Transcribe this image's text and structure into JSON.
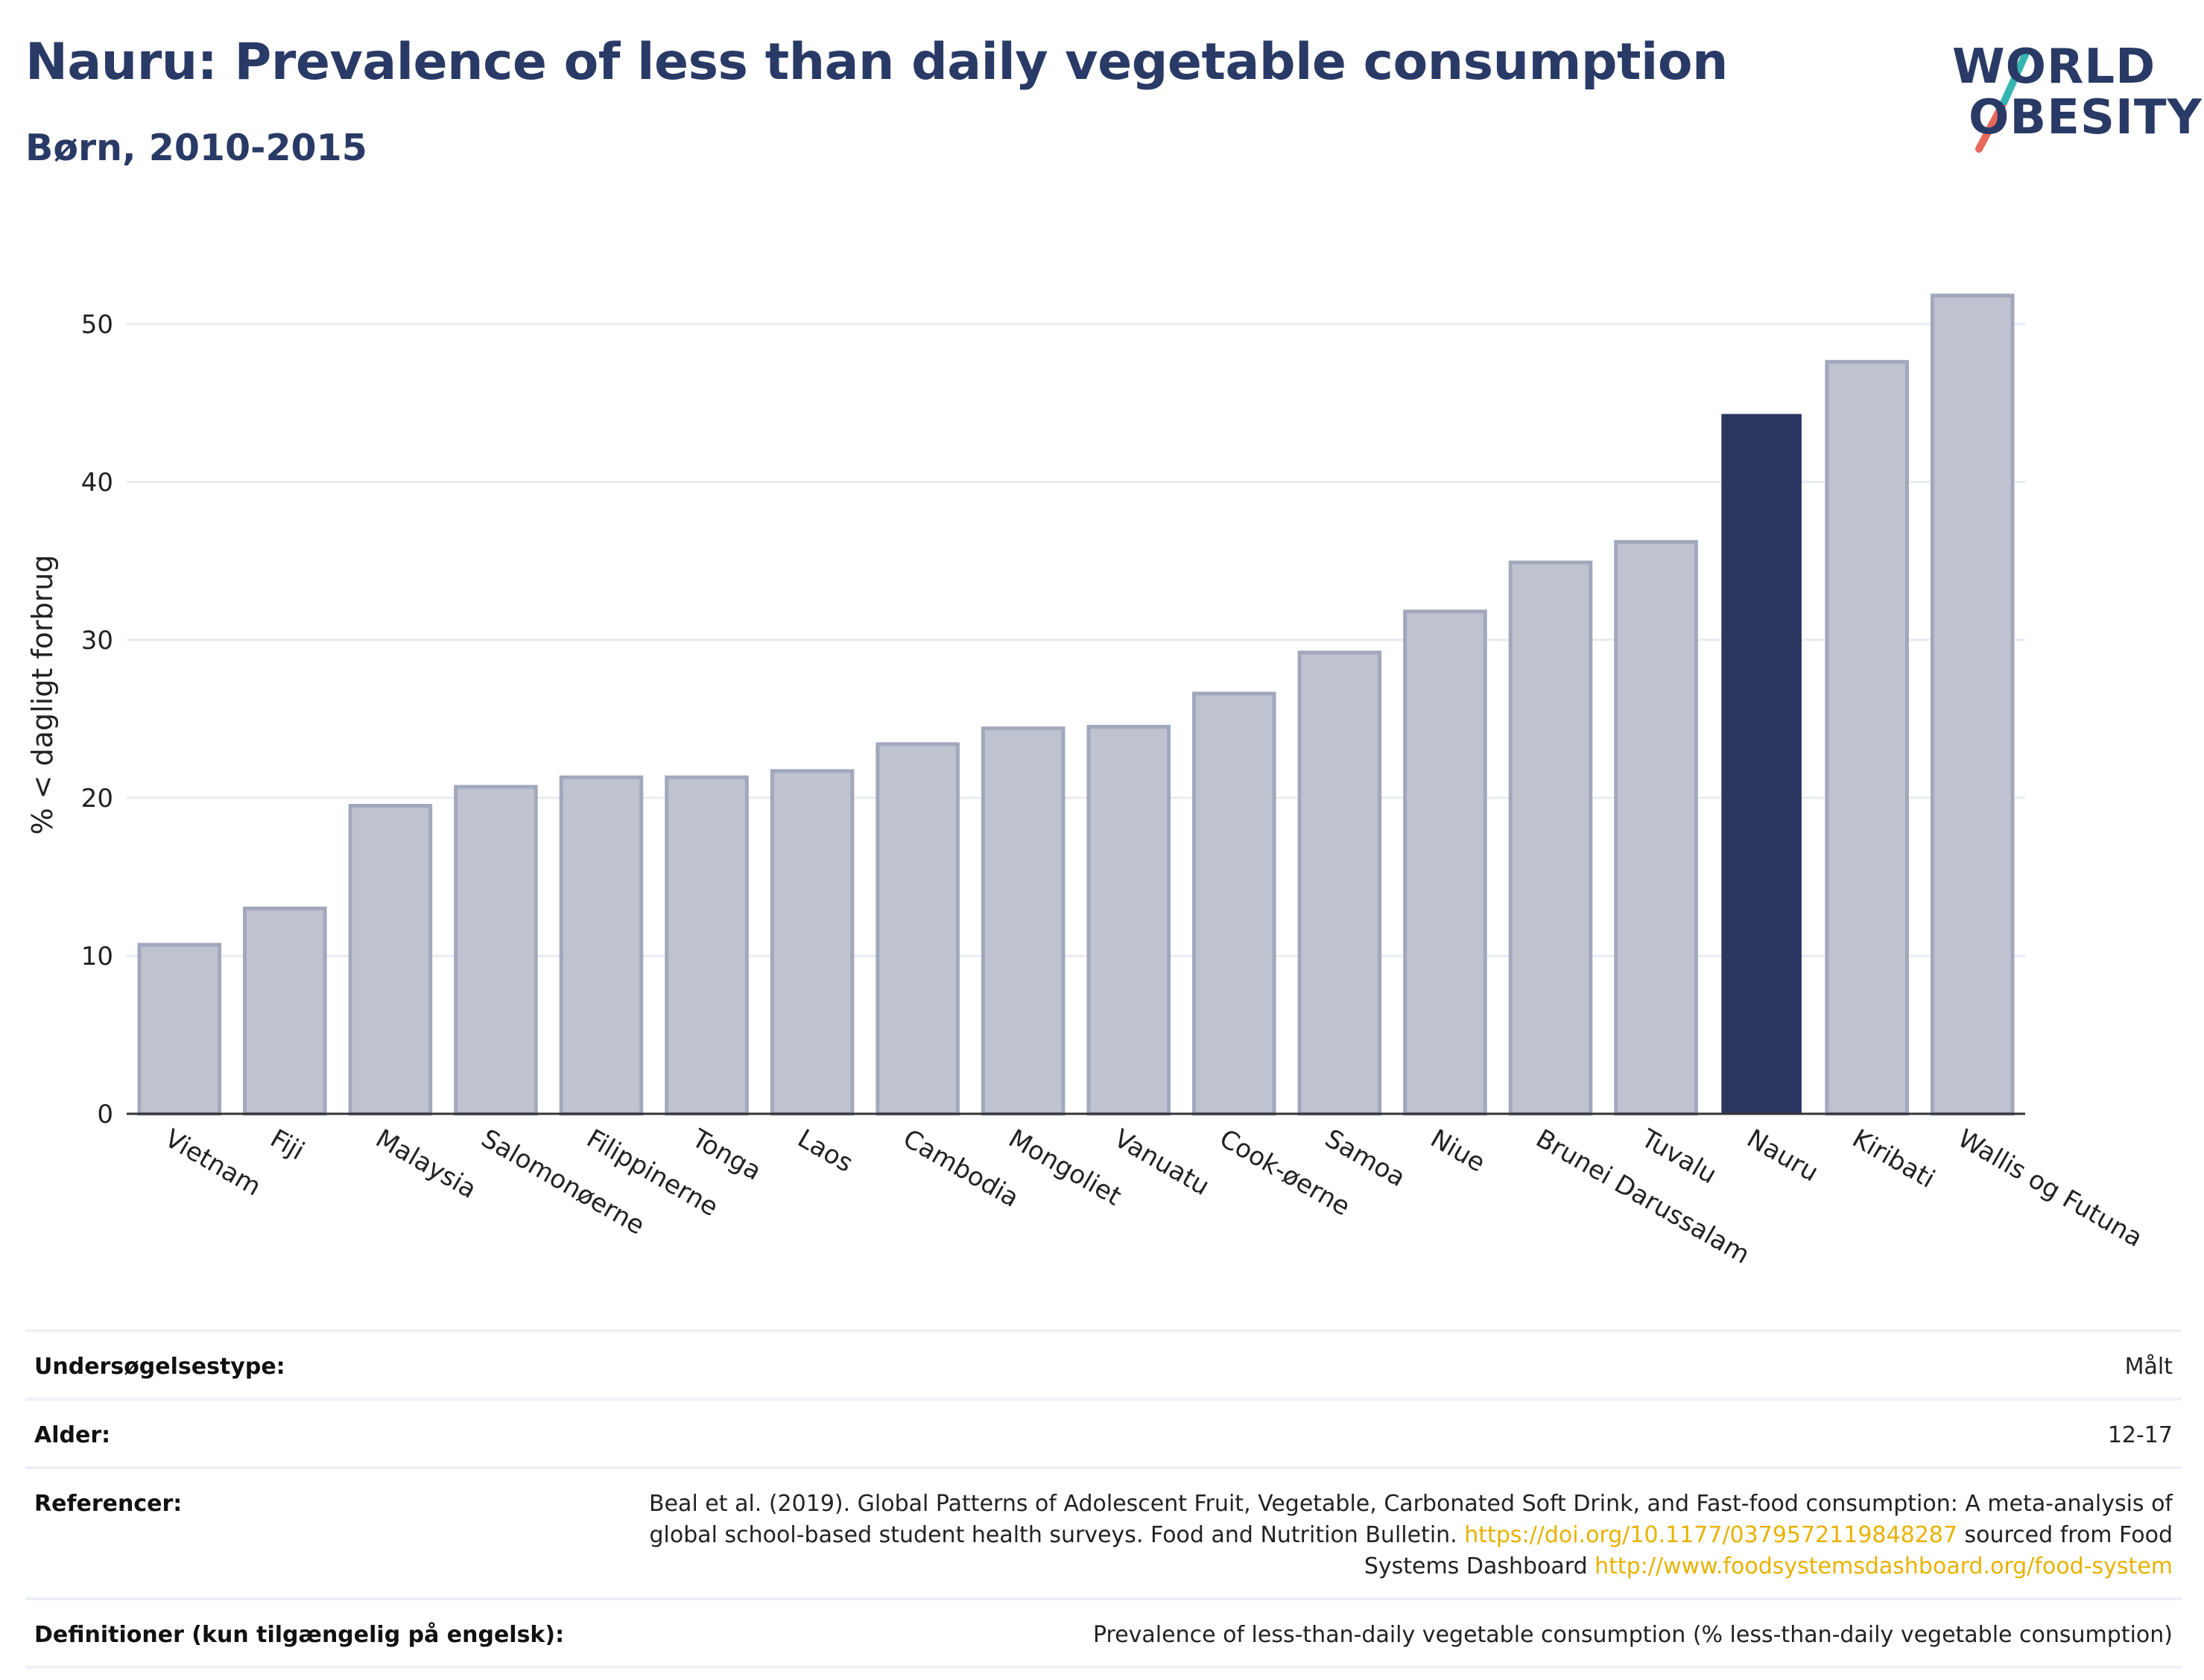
{
  "header": {
    "title": "Nauru: Prevalence of less than daily vegetable consumption",
    "subtitle": "Børn, 2010-2015"
  },
  "logo": {
    "line1": "WORLD",
    "line2": "OBESITY"
  },
  "colors": {
    "bar": "#bfc3d0",
    "bar_stroke": "#a2a8bc",
    "highlight": "#2a3660",
    "grid": "#e9ebf2",
    "logo_text": "#2a3a66",
    "logo_teal": "#36b5b0",
    "logo_coral": "#e8685a",
    "link": "#e8b200"
  },
  "chart_data": {
    "type": "bar",
    "title": "Nauru: Prevalence of less than daily vegetable consumption",
    "subtitle": "Børn, 2010-2015",
    "ylabel": "% < dagligt forbrug",
    "xlabel": "",
    "ylim": [
      0,
      54
    ],
    "yticks": [
      0,
      10,
      20,
      30,
      40,
      50
    ],
    "grid": true,
    "highlight": "Nauru",
    "categories": [
      "Vietnam",
      "Fiji",
      "Malaysia",
      "Salomonøerne",
      "Filippinerne",
      "Tonga",
      "Laos",
      "Cambodia",
      "Mongoliet",
      "Vanuatu",
      "Cook-øerne",
      "Samoa",
      "Niue",
      "Brunei Darussalam",
      "Tuvalu",
      "Nauru",
      "Kiribati",
      "Wallis og Futuna"
    ],
    "values": [
      10.7,
      13.0,
      19.5,
      20.7,
      21.3,
      21.3,
      21.7,
      23.4,
      24.4,
      24.5,
      26.6,
      29.2,
      31.8,
      34.9,
      36.2,
      44.3,
      47.6,
      51.8
    ]
  },
  "info": {
    "survey_type": {
      "label": "Undersøgelsestype:",
      "value": "Målt"
    },
    "age": {
      "label": "Alder:",
      "value": "12-17"
    },
    "references": {
      "label": "Referencer:",
      "text1": "Beal et al. (2019). Global Patterns of Adolescent Fruit, Vegetable, Carbonated Soft Drink, and Fast-food consumption: A meta-analysis of global school-based student health surveys. Food and Nutrition Bulletin.",
      "link1": "https://doi.org/10.1177/0379572119848287",
      "text2": "sourced from Food Systems Dashboard",
      "link2": "http://www.foodsystemsdashboard.org/food-system"
    },
    "definitions": {
      "label": "Definitioner (kun tilgængelig på engelsk):",
      "value": "Prevalence of less-than-daily vegetable consumption (% less-than-daily vegetable consumption)"
    }
  }
}
